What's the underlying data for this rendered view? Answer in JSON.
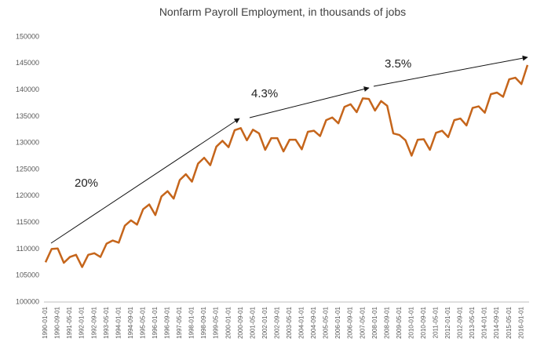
{
  "chart_data": {
    "type": "line",
    "title": "Nonfarm Payroll Employment, in thousands of jobs",
    "categories": [
      "1990-01-01",
      null,
      "1990-09-01",
      null,
      "1991-05-01",
      null,
      "1992-01-01",
      null,
      "1992-09-01",
      null,
      "1993-05-01",
      null,
      "1994-01-01",
      null,
      "1994-09-01",
      null,
      "1995-05-01",
      null,
      "1996-01-01",
      null,
      "1996-09-01",
      null,
      "1997-05-01",
      null,
      "1998-01-01",
      null,
      "1998-09-01",
      null,
      "1999-05-01",
      null,
      "2000-01-01",
      null,
      "2000-09-01",
      null,
      "2001-05-01",
      null,
      "2002-01-01",
      null,
      "2002-09-01",
      null,
      "2003-05-01",
      null,
      "2004-01-01",
      null,
      "2004-09-01",
      null,
      "2005-05-01",
      null,
      "2006-01-01",
      null,
      "2006-09-01",
      null,
      "2007-05-01",
      null,
      "2008-01-01",
      null,
      "2008-09-01",
      null,
      "2009-05-01",
      null,
      "2010-01-01",
      null,
      "2010-09-01",
      null,
      "2011-05-01",
      null,
      "2012-01-01",
      null,
      "2012-09-01",
      null,
      "2013-05-01",
      null,
      "2014-01-01",
      null,
      "2014-09-01",
      null,
      "2015-05-01",
      null,
      "2016-01-01",
      null
    ],
    "values": [
      107500,
      110000,
      110100,
      107400,
      108500,
      108900,
      106600,
      108900,
      109200,
      108500,
      111000,
      111600,
      111200,
      114400,
      115400,
      114600,
      117500,
      118400,
      116400,
      119900,
      120900,
      119500,
      123000,
      124100,
      122700,
      126100,
      127200,
      125800,
      129300,
      130400,
      129200,
      132400,
      132800,
      130500,
      132500,
      131800,
      128700,
      130900,
      130900,
      128400,
      130600,
      130600,
      128800,
      132100,
      132300,
      131300,
      134300,
      134800,
      133700,
      136800,
      137300,
      135800,
      138400,
      138300,
      136100,
      137900,
      137000,
      131800,
      131500,
      130500,
      127600,
      130600,
      130700,
      128700,
      131900,
      132300,
      131100,
      134300,
      134600,
      133300,
      136600,
      136900,
      135700,
      139200,
      139500,
      138700,
      142000,
      142300,
      141100,
      144700
    ],
    "color": "#c5651b",
    "ylim": [
      100000,
      150000
    ],
    "yticks": [
      100000,
      105000,
      110000,
      115000,
      120000,
      125000,
      130000,
      135000,
      140000,
      145000,
      150000
    ],
    "grid": false,
    "annotations": [
      "20%",
      "4.3%",
      "3.5%"
    ]
  }
}
